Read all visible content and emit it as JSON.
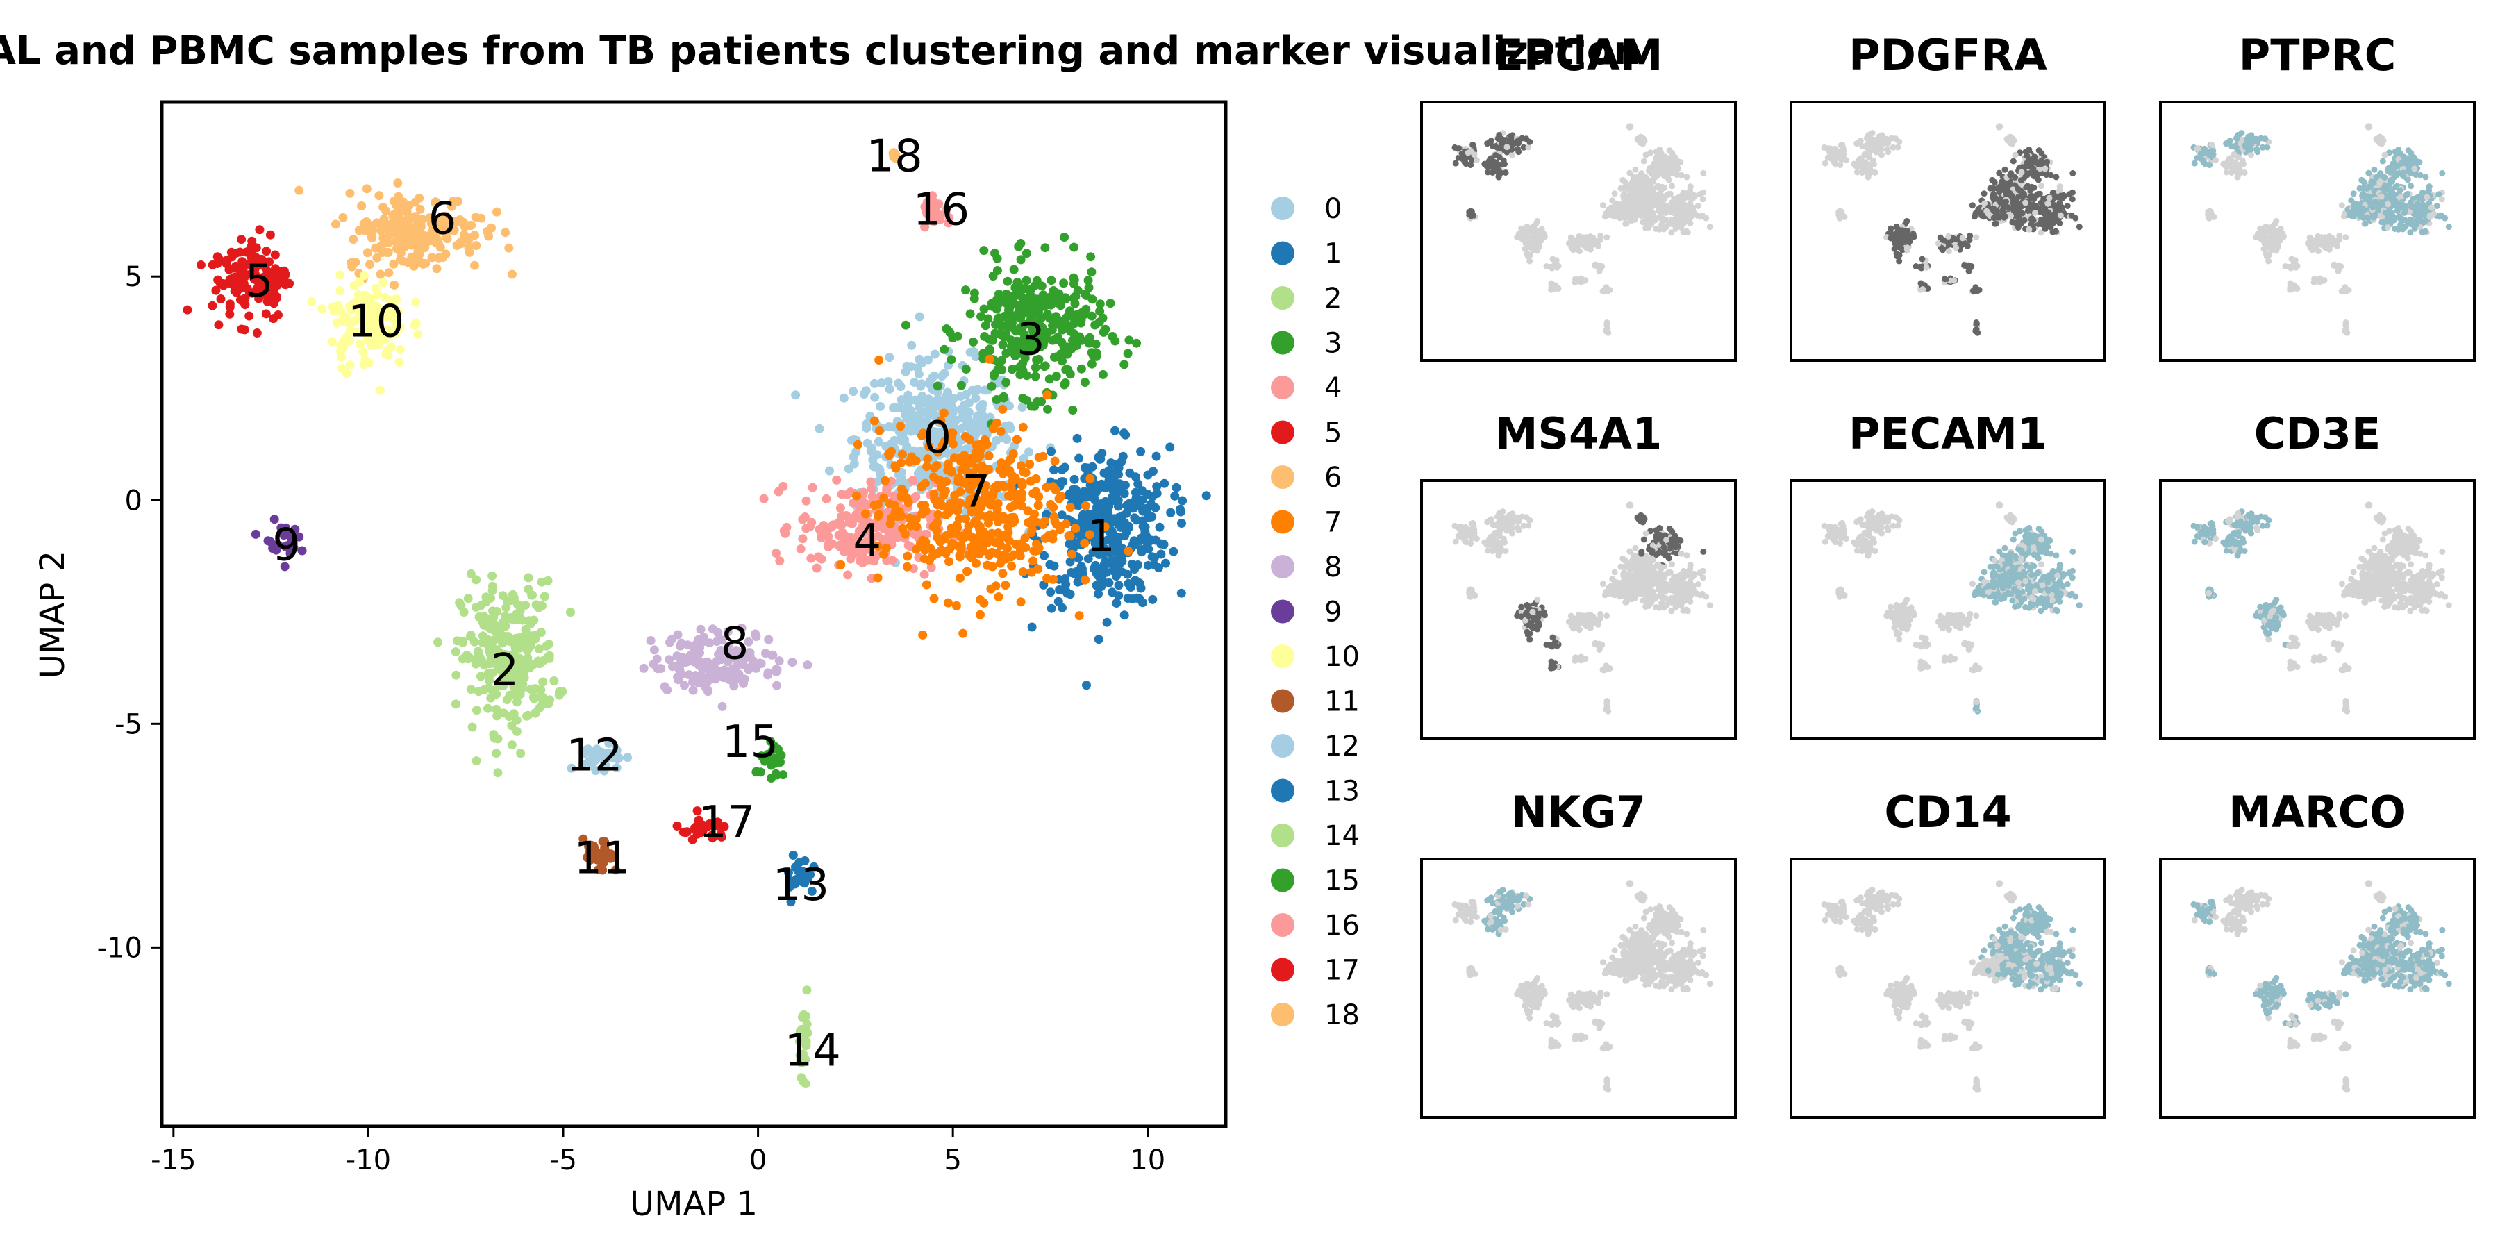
{
  "chart_data": {
    "type": "scatter",
    "title": "BAL and PBMC samples from TB patients clustering and marker visualization",
    "main": {
      "xlabel": "UMAP 1",
      "ylabel": "UMAP 2",
      "xlim": [
        -15.3,
        12
      ],
      "ylim": [
        -14,
        8.9
      ],
      "xticks": [
        -15,
        -10,
        -5,
        0,
        5,
        10
      ],
      "yticks": [
        -10,
        -5,
        0,
        5
      ],
      "xtick_labels": [
        "-15",
        "-10",
        "-5",
        "0",
        "5",
        "10"
      ],
      "ytick_labels": [
        "-10",
        "-5",
        "0",
        "5"
      ],
      "legend_position": "right",
      "clusters": [
        {
          "name": "0",
          "color": "#a6cee3",
          "center": [
            4.6,
            1.4
          ],
          "spread": [
            1.9,
            1.5
          ],
          "label_pos": [
            4.6,
            1.4
          ]
        },
        {
          "name": "1",
          "color": "#1f78b4",
          "center": [
            8.9,
            -0.6
          ],
          "spread": [
            1.5,
            1.6
          ],
          "label_pos": [
            8.8,
            -0.8
          ]
        },
        {
          "name": "2",
          "color": "#b2df8a",
          "center": [
            -6.4,
            -3.5
          ],
          "spread": [
            1.1,
            1.5
          ],
          "label_pos": [
            -6.5,
            -3.8
          ]
        },
        {
          "name": "3",
          "color": "#33a02c",
          "center": [
            7.1,
            3.8
          ],
          "spread": [
            1.6,
            1.3
          ],
          "label_pos": [
            7.0,
            3.6
          ]
        },
        {
          "name": "4",
          "color": "#fb9a99",
          "center": [
            2.8,
            -0.6
          ],
          "spread": [
            1.6,
            0.9
          ],
          "label_pos": [
            2.8,
            -0.9
          ]
        },
        {
          "name": "5",
          "color": "#e31a1c",
          "center": [
            -13.0,
            5.0
          ],
          "spread": [
            0.9,
            0.9
          ],
          "label_pos": [
            -12.8,
            4.9
          ]
        },
        {
          "name": "6",
          "color": "#fdbf6f",
          "center": [
            -8.8,
            6.0
          ],
          "spread": [
            1.6,
            0.8
          ],
          "label_pos": [
            -8.1,
            6.3
          ]
        },
        {
          "name": "7",
          "color": "#ff7f00",
          "center": [
            5.5,
            -0.2
          ],
          "spread": [
            2.2,
            1.7
          ],
          "label_pos": [
            5.6,
            0.2
          ]
        },
        {
          "name": "8",
          "color": "#cab2d6",
          "center": [
            -1.0,
            -3.6
          ],
          "spread": [
            1.6,
            0.6
          ],
          "label_pos": [
            -0.6,
            -3.2
          ]
        },
        {
          "name": "9",
          "color": "#6a3d9a",
          "center": [
            -12.3,
            -0.9
          ],
          "spread": [
            0.45,
            0.35
          ],
          "label_pos": [
            -12.1,
            -1.0
          ]
        },
        {
          "name": "10",
          "color": "#ffff99",
          "center": [
            -10.0,
            4.0
          ],
          "spread": [
            0.9,
            0.9
          ],
          "label_pos": [
            -9.8,
            4.0
          ]
        },
        {
          "name": "11",
          "color": "#b15928",
          "center": [
            -4.1,
            -8.0
          ],
          "spread": [
            0.35,
            0.35
          ],
          "label_pos": [
            -4.0,
            -8.0
          ]
        },
        {
          "name": "12",
          "color": "#a6cee3",
          "center": [
            -4.0,
            -5.8
          ],
          "spread": [
            0.5,
            0.4
          ],
          "label_pos": [
            -4.2,
            -5.7
          ]
        },
        {
          "name": "13",
          "color": "#1f78b4",
          "center": [
            1.1,
            -8.4
          ],
          "spread": [
            0.35,
            0.45
          ],
          "label_pos": [
            1.1,
            -8.6
          ]
        },
        {
          "name": "14",
          "color": "#b2df8a",
          "center": [
            1.2,
            -12.0
          ],
          "spread": [
            0.12,
            0.7
          ],
          "label_pos": [
            1.4,
            -12.3
          ]
        },
        {
          "name": "15",
          "color": "#33a02c",
          "center": [
            0.4,
            -5.9
          ],
          "spread": [
            0.4,
            0.35
          ],
          "label_pos": [
            -0.2,
            -5.4
          ]
        },
        {
          "name": "16",
          "color": "#fb9a99",
          "center": [
            4.6,
            6.4
          ],
          "spread": [
            0.35,
            0.3
          ],
          "label_pos": [
            4.7,
            6.5
          ]
        },
        {
          "name": "17",
          "color": "#e31a1c",
          "center": [
            -1.4,
            -7.4
          ],
          "spread": [
            0.7,
            0.25
          ],
          "label_pos": [
            -0.8,
            -7.2
          ]
        },
        {
          "name": "18",
          "color": "#fdbf6f",
          "center": [
            3.5,
            7.7
          ],
          "spread": [
            0.05,
            0.05
          ],
          "label_pos": [
            3.5,
            7.7
          ]
        }
      ]
    },
    "markers": {
      "panels": [
        {
          "gene": "EPCAM",
          "pattern": "dark in upper-left clusters",
          "color": "#666666"
        },
        {
          "gene": "PDGFRA",
          "pattern": "dark nearly everywhere",
          "color": "#666666"
        },
        {
          "gene": "PTPRC",
          "pattern": "teal broadly expressed",
          "color": "#8fbcc6"
        },
        {
          "gene": "MS4A1",
          "pattern": "dark in lower-left and right",
          "color": "#666666"
        },
        {
          "gene": "PECAM1",
          "pattern": "teal in right clusters",
          "color": "#8fbcc6"
        },
        {
          "gene": "CD3E",
          "pattern": "teal in upper-left",
          "color": "#8fbcc6"
        },
        {
          "gene": "NKG7",
          "pattern": "teal in top-left",
          "color": "#8fbcc6"
        },
        {
          "gene": "CD14",
          "pattern": "faint teal in right",
          "color": "#8fbcc6"
        },
        {
          "gene": "MARCO",
          "pattern": "teal right, dark left",
          "color": "#8fbcc6"
        }
      ],
      "background_color": "#d3d3d3"
    }
  }
}
